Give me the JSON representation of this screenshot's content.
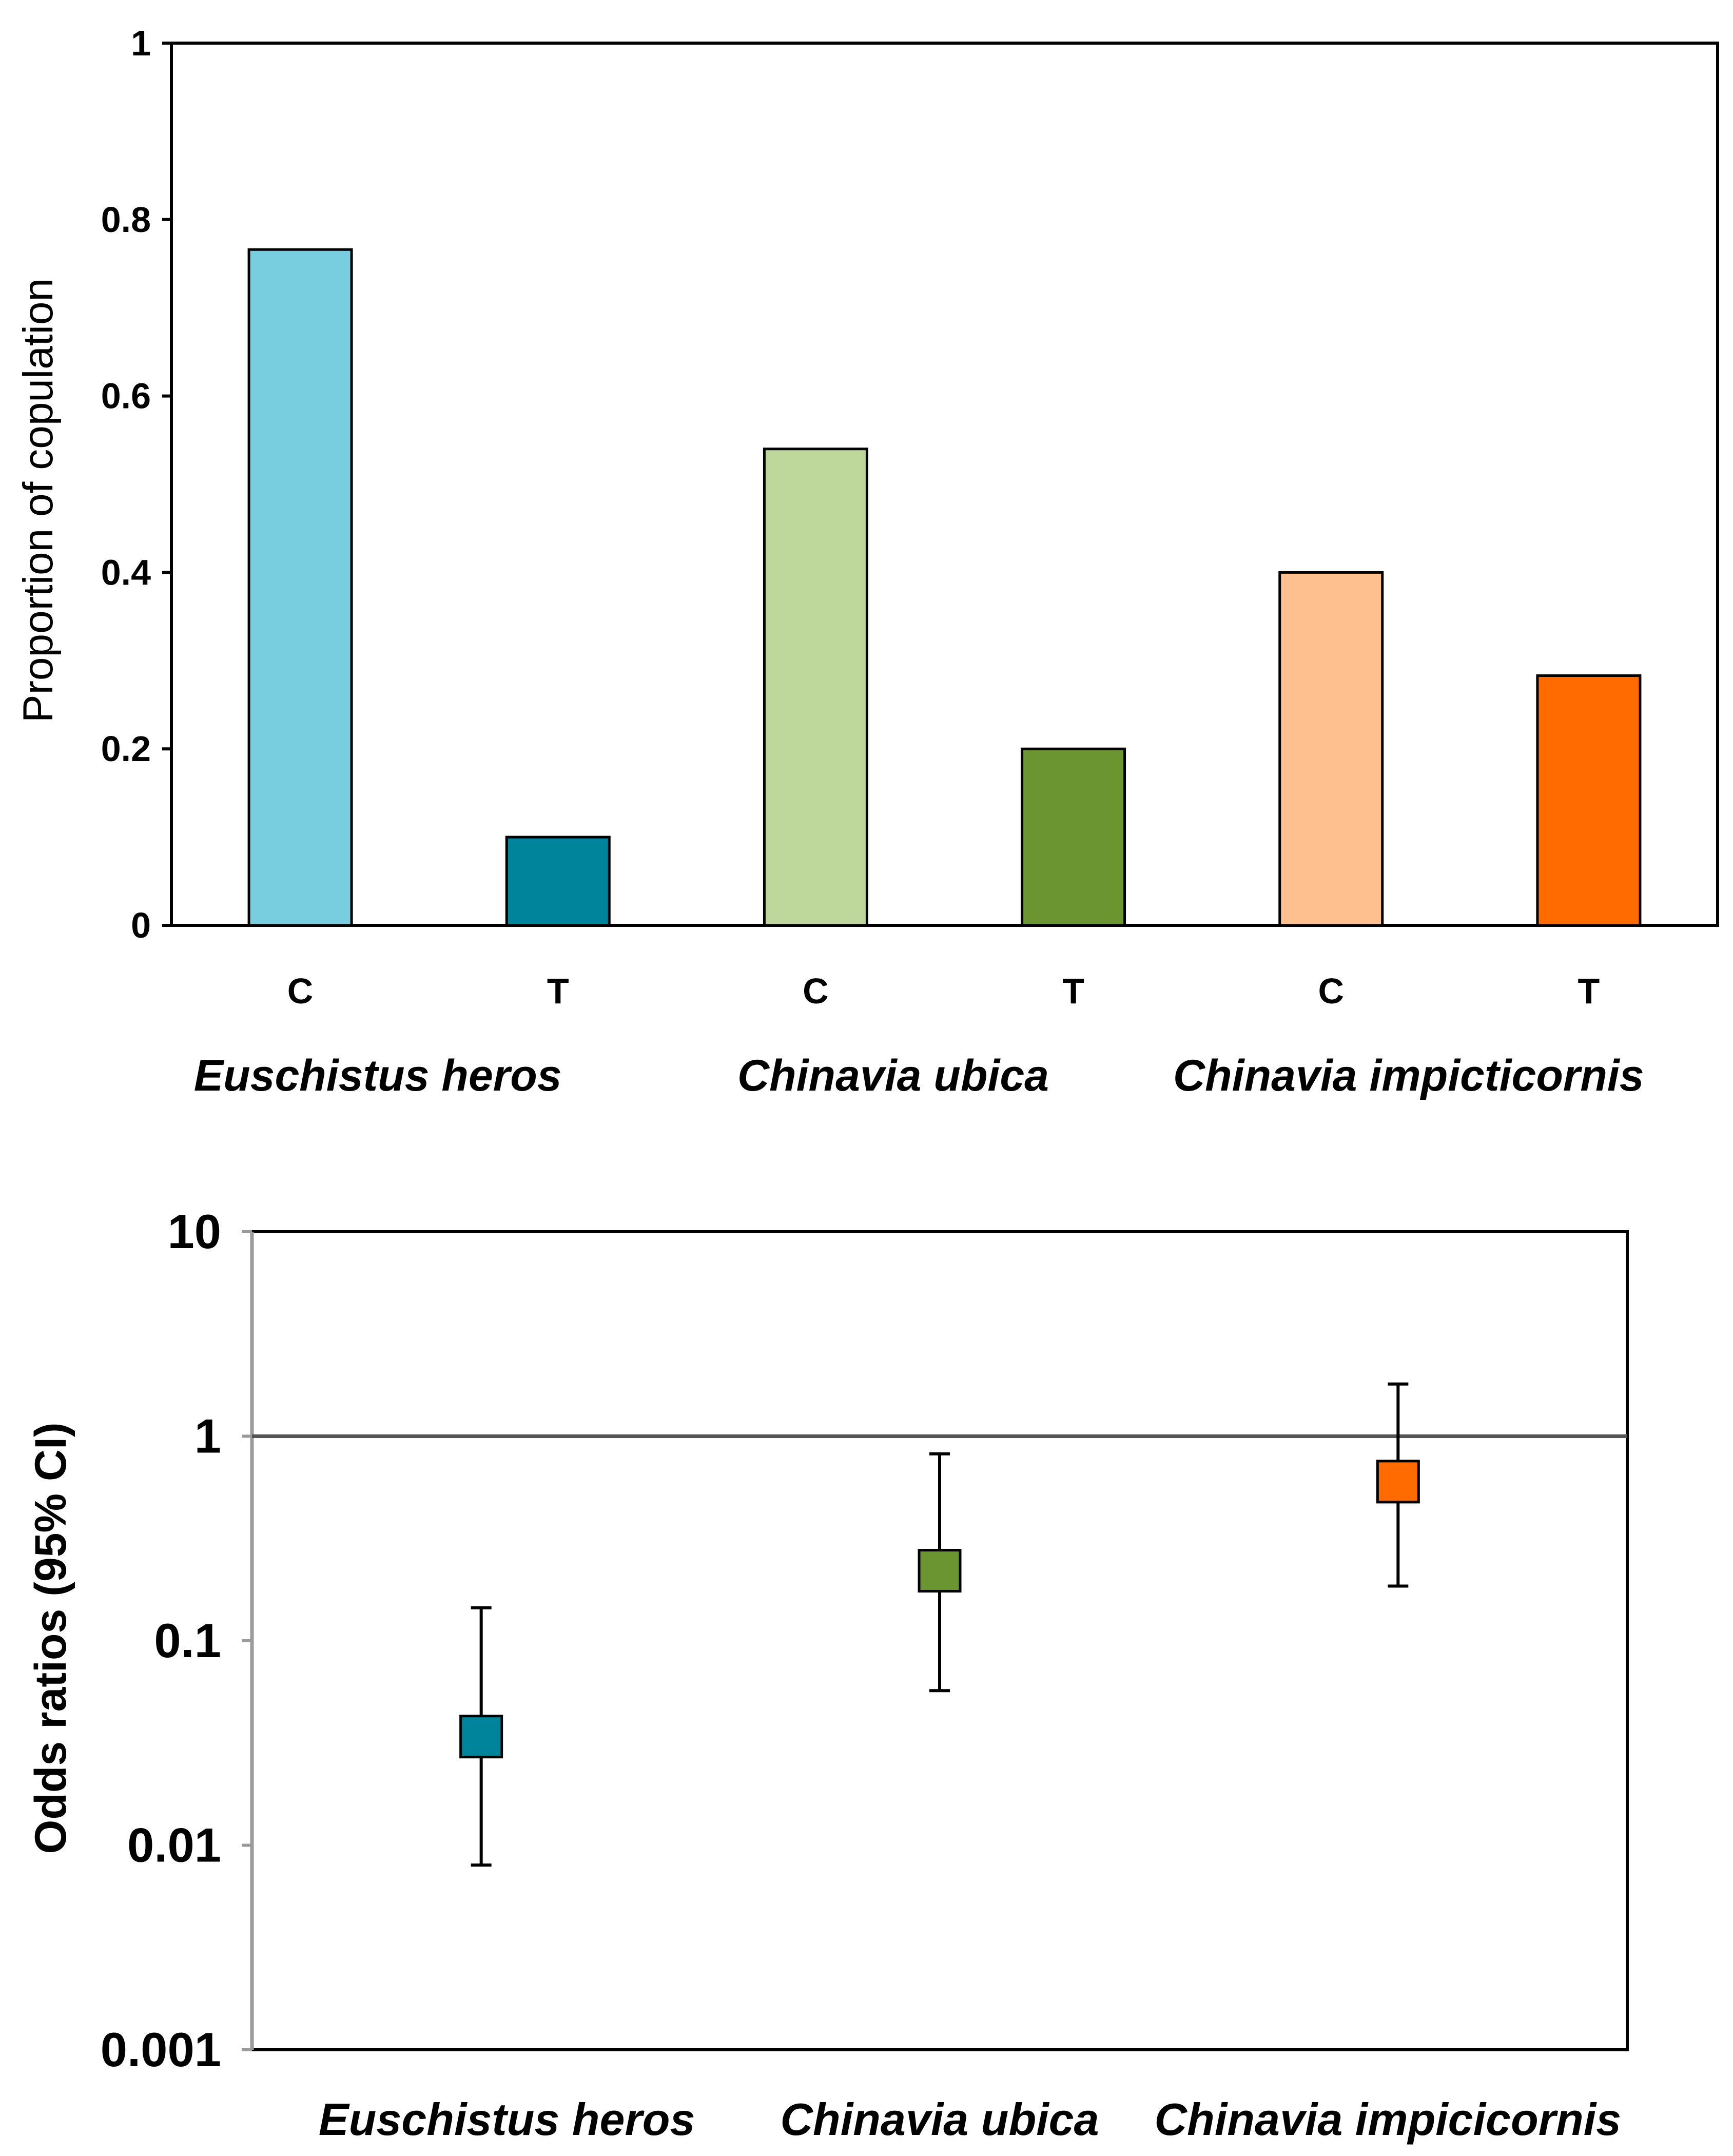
{
  "chart_data": [
    {
      "type": "bar",
      "title": "",
      "xlabel": "",
      "ylabel": "Proportion of copulation",
      "ylim": [
        0,
        1
      ],
      "yticks": [
        "0",
        "0.2",
        "0.4",
        "0.6",
        "0.8",
        "1"
      ],
      "ytick_values": [
        0,
        0.2,
        0.4,
        0.6,
        0.8,
        1
      ],
      "grid": false,
      "bars": [
        {
          "label": "C",
          "group": "Euschistus heros",
          "value": 0.766,
          "color": "#78CEDF"
        },
        {
          "label": "T",
          "group": "Euschistus heros",
          "value": 0.1,
          "color": "#00849C"
        },
        {
          "label": "C",
          "group": "Chinavia ubica",
          "value": 0.54,
          "color": "#BDD89A"
        },
        {
          "label": "T",
          "group": "Chinavia ubica",
          "value": 0.2,
          "color": "#6A9530"
        },
        {
          "label": "C",
          "group": "Chinavia impicticornis",
          "value": 0.4,
          "color": "#FFC08F"
        },
        {
          "label": "T",
          "group": "Chinavia impicticornis",
          "value": 0.283,
          "color": "#FF6B00"
        }
      ],
      "groups": [
        "Euschistus heros",
        "Chinavia ubica",
        "Chinavia impicticornis"
      ]
    },
    {
      "type": "scatter",
      "title": "",
      "xlabel": "",
      "ylabel": "Odds ratios (95% CI)",
      "yscale": "log",
      "ylim": [
        0.001,
        10
      ],
      "yticks": [
        "0.001",
        "0.01",
        "0.1",
        "1",
        "10"
      ],
      "ytick_values": [
        0.001,
        0.01,
        0.1,
        1,
        10
      ],
      "reference_line": 1,
      "grid": false,
      "categories": [
        "Euschistus heros",
        "Chinavia ubica",
        "Chinavia impicicornis"
      ],
      "points": [
        {
          "label": "Euschistus heros",
          "value": 0.034,
          "ci_low": 0.008,
          "ci_high": 0.145,
          "color": "#00849C"
        },
        {
          "label": "Chinavia ubica",
          "value": 0.22,
          "ci_low": 0.057,
          "ci_high": 0.82,
          "color": "#6A9530"
        },
        {
          "label": "Chinavia impicicornis",
          "value": 0.6,
          "ci_low": 0.185,
          "ci_high": 1.8,
          "color": "#FF6B00"
        }
      ]
    }
  ]
}
